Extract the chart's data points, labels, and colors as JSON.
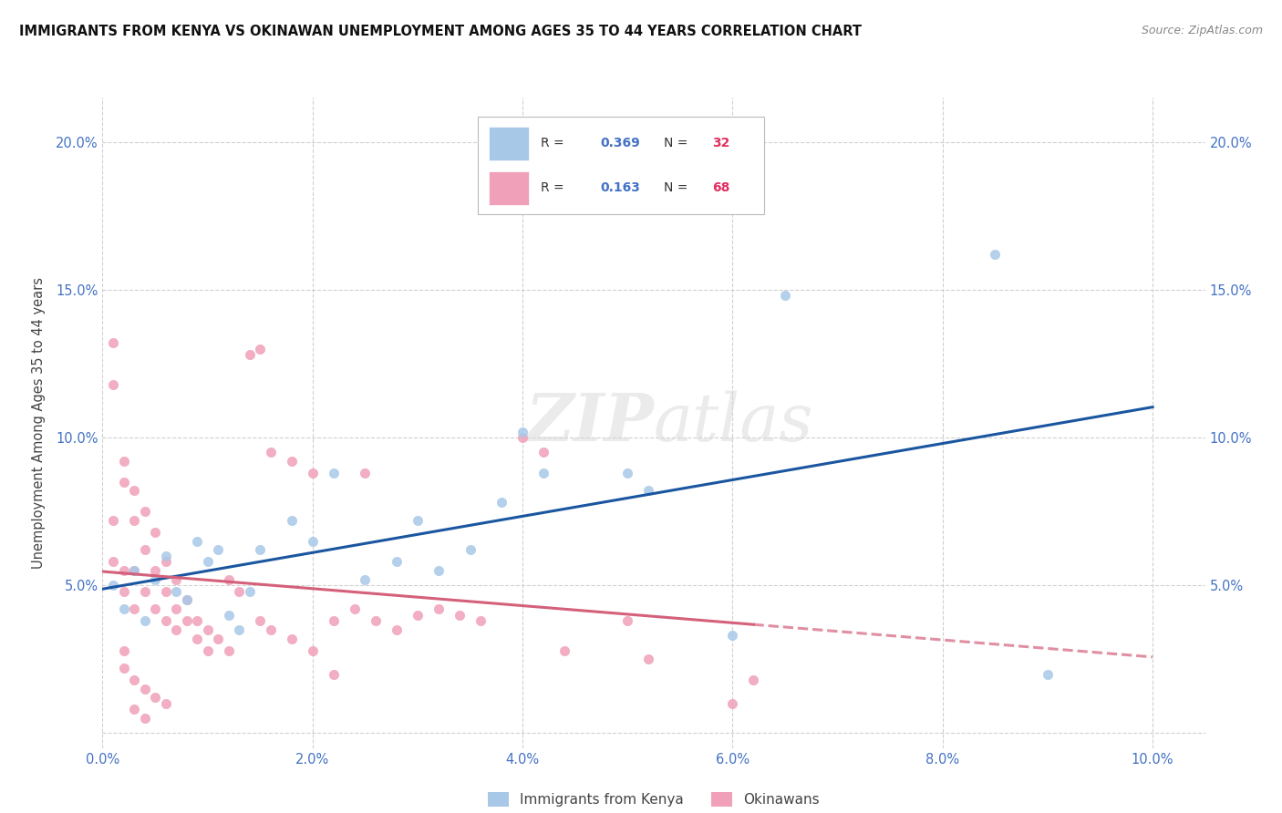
{
  "title": "IMMIGRANTS FROM KENYA VS OKINAWAN UNEMPLOYMENT AMONG AGES 35 TO 44 YEARS CORRELATION CHART",
  "source": "Source: ZipAtlas.com",
  "ylabel": "Unemployment Among Ages 35 to 44 years",
  "xlim": [
    0.0,
    0.105
  ],
  "ylim": [
    -0.005,
    0.215
  ],
  "xticks": [
    0.0,
    0.02,
    0.04,
    0.06,
    0.08,
    0.1
  ],
  "xticklabels": [
    "0.0%",
    "2.0%",
    "4.0%",
    "6.0%",
    "8.0%",
    "10.0%"
  ],
  "yticks": [
    0.0,
    0.05,
    0.1,
    0.15,
    0.2
  ],
  "yticklabels": [
    "",
    "5.0%",
    "10.0%",
    "15.0%",
    "20.0%"
  ],
  "legend_R1": "0.369",
  "legend_N1": "32",
  "legend_R2": "0.163",
  "legend_N2": "68",
  "color_kenya": "#a8c8e8",
  "color_okinawan": "#f0a0b8",
  "color_kenya_line": "#1a56a0",
  "color_okinawan_line": "#d4607a",
  "watermark": "ZIPatlas",
  "kenya_x": [
    0.001,
    0.002,
    0.003,
    0.004,
    0.005,
    0.006,
    0.007,
    0.008,
    0.009,
    0.01,
    0.011,
    0.012,
    0.013,
    0.014,
    0.015,
    0.018,
    0.02,
    0.022,
    0.025,
    0.028,
    0.03,
    0.032,
    0.035,
    0.038,
    0.04,
    0.042,
    0.05,
    0.052,
    0.06,
    0.065,
    0.085,
    0.09
  ],
  "kenya_y": [
    0.05,
    0.042,
    0.055,
    0.038,
    0.052,
    0.06,
    0.048,
    0.045,
    0.065,
    0.058,
    0.062,
    0.04,
    0.035,
    0.048,
    0.062,
    0.072,
    0.065,
    0.088,
    0.052,
    0.058,
    0.072,
    0.055,
    0.062,
    0.078,
    0.102,
    0.088,
    0.088,
    0.082,
    0.033,
    0.148,
    0.162,
    0.02
  ],
  "okinawan_x": [
    0.001,
    0.001,
    0.001,
    0.001,
    0.002,
    0.002,
    0.002,
    0.002,
    0.003,
    0.003,
    0.003,
    0.003,
    0.004,
    0.004,
    0.004,
    0.005,
    0.005,
    0.005,
    0.006,
    0.006,
    0.006,
    0.007,
    0.007,
    0.007,
    0.008,
    0.008,
    0.009,
    0.009,
    0.01,
    0.01,
    0.011,
    0.012,
    0.012,
    0.013,
    0.014,
    0.015,
    0.016,
    0.018,
    0.02,
    0.022,
    0.024,
    0.026,
    0.028,
    0.03,
    0.032,
    0.034,
    0.036,
    0.04,
    0.042,
    0.044,
    0.002,
    0.002,
    0.003,
    0.004,
    0.005,
    0.006,
    0.003,
    0.004,
    0.05,
    0.052,
    0.06,
    0.062,
    0.025,
    0.015,
    0.016,
    0.018,
    0.02,
    0.022
  ],
  "okinawan_y": [
    0.132,
    0.118,
    0.072,
    0.058,
    0.092,
    0.085,
    0.055,
    0.048,
    0.082,
    0.072,
    0.055,
    0.042,
    0.075,
    0.062,
    0.048,
    0.068,
    0.055,
    0.042,
    0.058,
    0.048,
    0.038,
    0.052,
    0.042,
    0.035,
    0.045,
    0.038,
    0.038,
    0.032,
    0.035,
    0.028,
    0.032,
    0.052,
    0.028,
    0.048,
    0.128,
    0.13,
    0.095,
    0.092,
    0.088,
    0.038,
    0.042,
    0.038,
    0.035,
    0.04,
    0.042,
    0.04,
    0.038,
    0.1,
    0.095,
    0.028,
    0.028,
    0.022,
    0.018,
    0.015,
    0.012,
    0.01,
    0.008,
    0.005,
    0.038,
    0.025,
    0.01,
    0.018,
    0.088,
    0.038,
    0.035,
    0.032,
    0.028,
    0.02
  ]
}
